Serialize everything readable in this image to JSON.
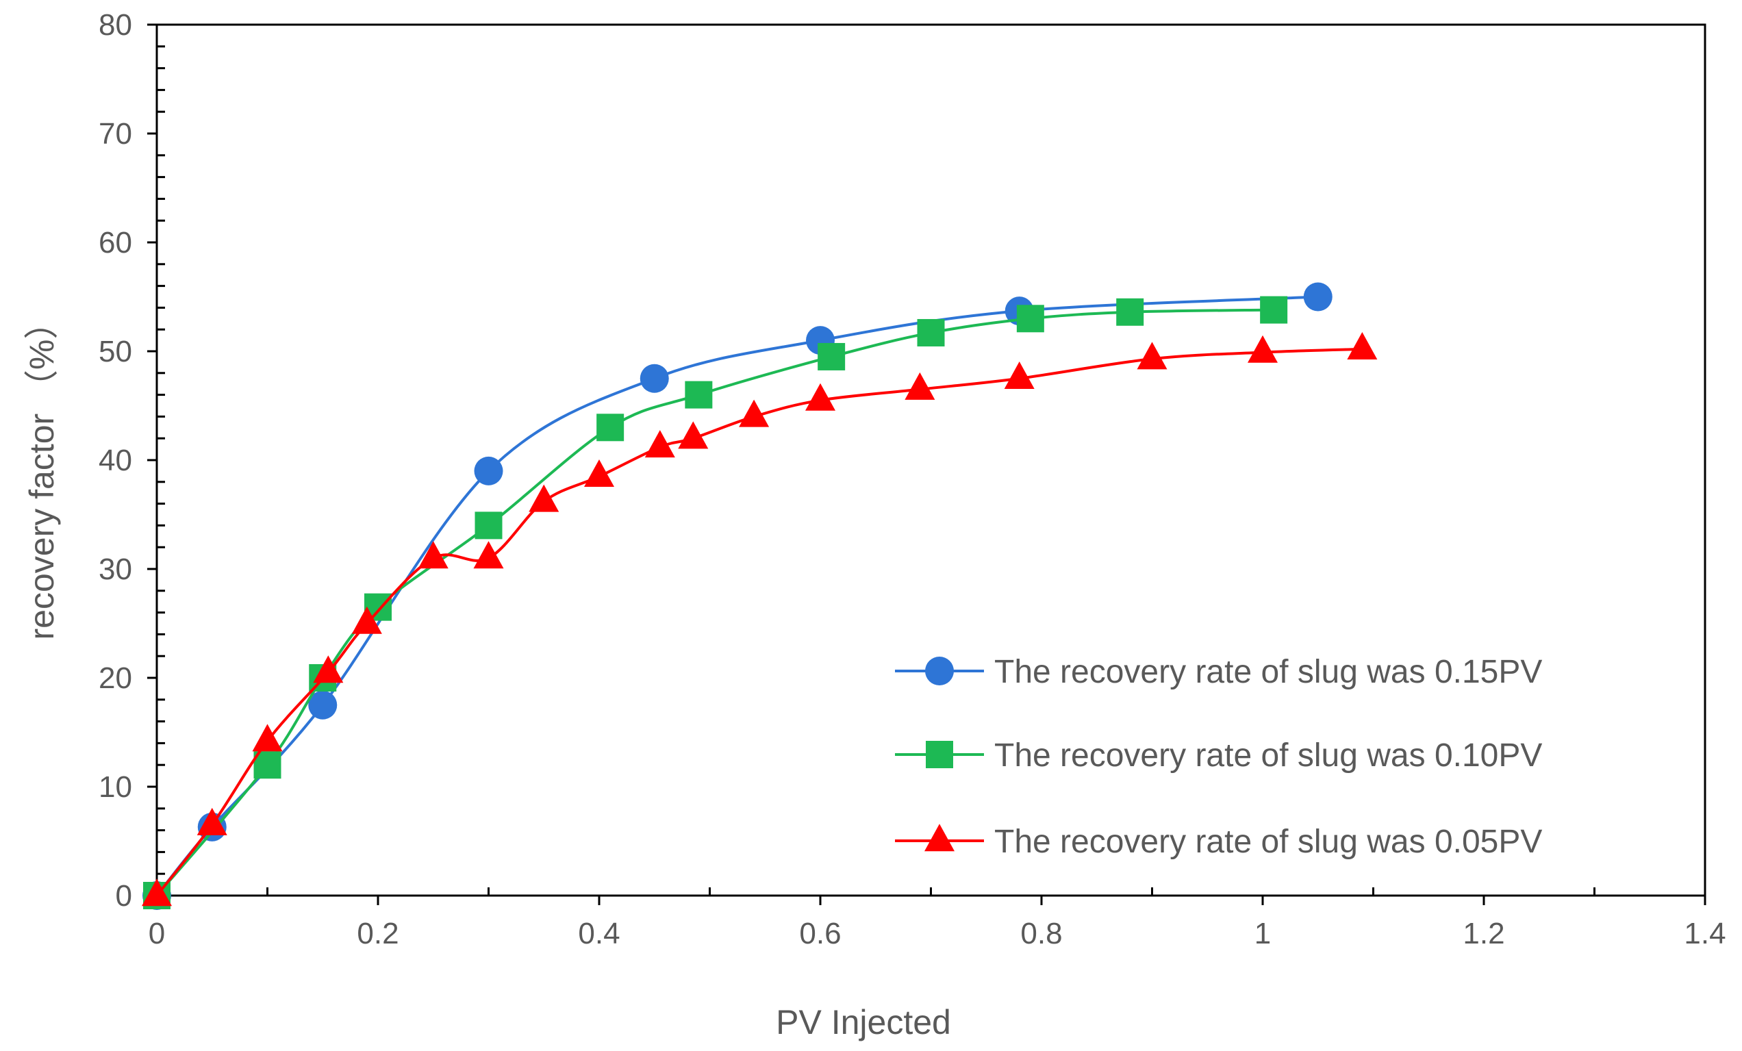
{
  "chart_data": {
    "type": "line",
    "title": "",
    "xlabel": "PV Injected",
    "ylabel": "recovery factor （%）",
    "xlim": [
      0,
      1.4
    ],
    "ylim": [
      0,
      80
    ],
    "x_ticks": [
      "0",
      "0.2",
      "0.4",
      "0.6",
      "0.8",
      "1",
      "1.2",
      "1.4"
    ],
    "y_ticks": [
      "0",
      "10",
      "20",
      "30",
      "40",
      "50",
      "60",
      "70",
      "80"
    ],
    "grid": false,
    "legend_position": "bottom-right",
    "series": [
      {
        "name": "The recovery rate of slug was 0.15PV",
        "color": "#2E75D6",
        "marker": "circle",
        "x": [
          0,
          0.05,
          0.15,
          0.3,
          0.45,
          0.6,
          0.78,
          1.05
        ],
        "y": [
          0,
          6.3,
          17.5,
          39,
          47.5,
          51,
          53.7,
          55
        ]
      },
      {
        "name": "The recovery rate of slug was 0.10PV",
        "color": "#1DB954",
        "marker": "square",
        "x": [
          0,
          0.1,
          0.15,
          0.2,
          0.3,
          0.41,
          0.49,
          0.61,
          0.7,
          0.79,
          0.88,
          1.01
        ],
        "y": [
          0,
          12,
          20,
          26.5,
          34,
          43,
          46,
          49.5,
          51.7,
          53,
          53.6,
          53.8
        ]
      },
      {
        "name": "The recovery rate of slug was 0.05PV",
        "color": "#FF0000",
        "marker": "triangle",
        "x": [
          0,
          0.05,
          0.1,
          0.155,
          0.19,
          0.25,
          0.3,
          0.35,
          0.4,
          0.455,
          0.485,
          0.54,
          0.6,
          0.69,
          0.78,
          0.9,
          1.0,
          1.09
        ],
        "y": [
          0,
          6.5,
          14.2,
          20.5,
          25,
          31,
          31,
          36.2,
          38.5,
          41.2,
          42,
          44,
          45.5,
          46.5,
          47.5,
          49.3,
          49.9,
          50.2
        ]
      }
    ]
  }
}
